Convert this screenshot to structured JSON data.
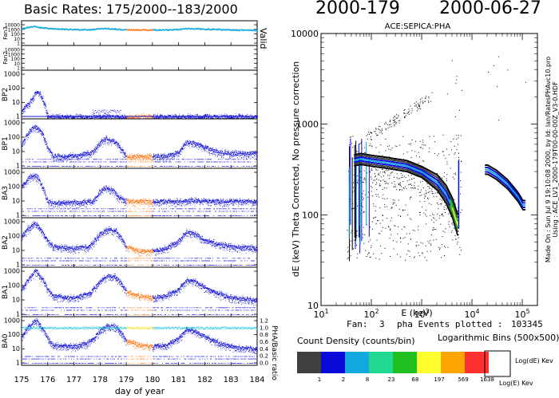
{
  "header": {
    "left_title": "Basic Rates: 175/2000--183/2000",
    "doy_label": "2000-179",
    "date_label": "2000-06-27"
  },
  "colors": {
    "rate_blue": "#1515d8",
    "rate_cyan": "#14a8e0",
    "highlight_orange": "#ff7a1a",
    "ratio_cyan": "#20c8d8",
    "ratio_yellow": "#f0e020"
  },
  "left_panel": {
    "xlabel": "day of year",
    "x_ticks": [
      "175",
      "176",
      "177",
      "178",
      "179",
      "180",
      "181",
      "182",
      "183",
      "184"
    ],
    "x_range": [
      175,
      184
    ],
    "highlight_range": [
      179,
      180
    ],
    "valid_label": "Valid",
    "ratio_axis_label": "PHA/Basic ratio",
    "ratio_ticks": [
      "0.0",
      "0.2",
      "0.4",
      "0.6",
      "0.8",
      "1.0",
      "1.2"
    ],
    "panels": [
      {
        "name": "Fan3",
        "ticks": [
          "1",
          "10",
          "100",
          "1000",
          "10000"
        ],
        "small_ticks": true
      },
      {
        "name": "Fan2",
        "ticks": [
          "1",
          "10",
          "100",
          "1000",
          "10000"
        ],
        "small_ticks": true
      },
      {
        "name": "BP2",
        "ticks": [
          "1",
          "10",
          "100",
          "1000"
        ]
      },
      {
        "name": "BP1",
        "ticks": [
          "1",
          "10",
          "100",
          "1000"
        ]
      },
      {
        "name": "BA3",
        "ticks": [
          "1",
          "10",
          "100",
          "1000"
        ]
      },
      {
        "name": "BA2",
        "ticks": [
          "1",
          "10",
          "100",
          "1000"
        ]
      },
      {
        "name": "BA1",
        "ticks": [
          "1",
          "10",
          "100",
          "1000"
        ]
      },
      {
        "name": "BA0",
        "ticks": [
          "1",
          "10",
          "100",
          "1000"
        ]
      }
    ]
  },
  "chart_data": [
    {
      "type": "line",
      "xlabel": "day of year",
      "xlim": [
        175,
        184
      ],
      "yscale": "log",
      "series": [
        {
          "name": "Fan3",
          "x": [
            175.0,
            175.3,
            175.5,
            175.7,
            176.0,
            176.5,
            177.0,
            177.5,
            177.8,
            178.1,
            178.4,
            178.7,
            179.0,
            179.5,
            180.0,
            180.5,
            181.0,
            181.3,
            181.6,
            182.0,
            182.5,
            183.0,
            183.5,
            184.0
          ],
          "values": [
            2000,
            4000,
            6000,
            3000,
            2000,
            1500,
            1200,
            1000,
            1400,
            2000,
            1800,
            1300,
            1000,
            1000,
            1000,
            900,
            1200,
            2000,
            1800,
            1400,
            1200,
            1000,
            900,
            900
          ]
        },
        {
          "name": "BP2",
          "x": [
            175.0,
            175.3,
            175.5,
            175.6,
            175.7,
            175.8,
            175.9,
            176.0
          ],
          "values": [
            3,
            10,
            40,
            60,
            40,
            20,
            5,
            1
          ]
        },
        {
          "name": "BP1",
          "x": [
            175.0,
            175.3,
            175.5,
            175.6,
            175.8,
            176.0,
            176.2,
            177.0,
            177.7,
            178.0,
            178.2,
            178.5,
            178.7,
            179.0,
            179.5,
            180.0,
            180.5,
            181.0,
            181.3,
            181.6,
            182.0,
            182.5,
            183.0,
            184.0
          ],
          "values": [
            30,
            300,
            600,
            500,
            200,
            20,
            5,
            5,
            10,
            40,
            90,
            60,
            30,
            5,
            5,
            5,
            5,
            10,
            50,
            40,
            20,
            10,
            8,
            8
          ]
        },
        {
          "name": "BA3",
          "x": [
            175.0,
            175.3,
            175.5,
            175.6,
            175.8,
            176.0,
            176.2,
            177.0,
            177.7,
            178.0,
            178.2,
            178.5,
            178.7,
            179.0,
            180.0,
            181.0,
            181.5,
            182.0,
            183.0,
            184.0
          ],
          "values": [
            100,
            500,
            700,
            500,
            100,
            10,
            8,
            8,
            10,
            50,
            100,
            60,
            20,
            10,
            10,
            10,
            12,
            10,
            10,
            10
          ]
        },
        {
          "name": "BA2",
          "x": [
            175.0,
            175.2,
            175.5,
            175.6,
            175.8,
            176.0,
            176.2,
            177.0,
            177.6,
            178.0,
            178.3,
            178.6,
            178.8,
            179.0,
            179.5,
            180.0,
            180.5,
            181.0,
            181.3,
            181.6,
            182.0,
            182.5,
            183.0,
            184.0
          ],
          "values": [
            100,
            300,
            800,
            700,
            200,
            50,
            20,
            15,
            20,
            150,
            300,
            250,
            80,
            20,
            10,
            10,
            15,
            50,
            200,
            150,
            60,
            30,
            20,
            15
          ]
        },
        {
          "name": "BA1",
          "x": [
            175.0,
            175.2,
            175.5,
            175.6,
            175.8,
            176.0,
            176.2,
            177.0,
            177.6,
            178.0,
            178.3,
            178.6,
            178.8,
            179.0,
            179.5,
            180.0,
            180.5,
            181.0,
            181.3,
            181.6,
            182.0,
            182.5,
            183.0,
            184.0
          ],
          "values": [
            50,
            200,
            1000,
            900,
            300,
            60,
            20,
            15,
            30,
            200,
            500,
            400,
            150,
            40,
            20,
            15,
            20,
            60,
            250,
            200,
            80,
            30,
            15,
            10
          ]
        },
        {
          "name": "BA0",
          "x": [
            175.0,
            175.2,
            175.5,
            175.6,
            175.8,
            176.0,
            176.2,
            177.0,
            177.6,
            178.0,
            178.3,
            178.6,
            178.8,
            179.0,
            179.5,
            180.0,
            180.5,
            181.0,
            181.3,
            181.6,
            182.0,
            182.5,
            183.0,
            184.0
          ],
          "values": [
            80,
            300,
            1000,
            900,
            300,
            60,
            20,
            15,
            30,
            200,
            500,
            400,
            150,
            40,
            20,
            15,
            20,
            60,
            250,
            200,
            80,
            30,
            15,
            10
          ]
        },
        {
          "name": "PHA/Basic ratio",
          "x": [
            175,
            176,
            177,
            178,
            179,
            180,
            181,
            182,
            183,
            184
          ],
          "values": [
            1.0,
            1.0,
            1.0,
            1.0,
            1.0,
            1.0,
            1.0,
            1.0,
            1.0,
            1.0
          ]
        }
      ]
    },
    {
      "type": "heatmap",
      "title": "ACE:SEPICA:PHA",
      "xlabel": "E (keV)",
      "ylabel": "dE (keV) Theta Corrected, No pressure correction",
      "xscale": "log",
      "yscale": "log",
      "xlim": [
        10,
        200000
      ],
      "ylim": [
        10,
        10000
      ],
      "x_ticks": [
        "10¹",
        "10²",
        "10³",
        "10⁴",
        "10⁵"
      ],
      "y_ticks": [
        "10",
        "100",
        "1000",
        "10000"
      ],
      "features": [
        {
          "name": "main track",
          "x": [
            40,
            60,
            100,
            200,
            500,
            1000,
            2000,
            3000,
            4000,
            5000
          ],
          "values": [
            400,
            420,
            400,
            380,
            350,
            300,
            230,
            170,
            120,
            80
          ]
        },
        {
          "name": "high energy track",
          "x": [
            20000,
            30000,
            50000,
            80000,
            100000
          ],
          "values": [
            320,
            280,
            220,
            160,
            130
          ]
        }
      ]
    }
  ],
  "right_panel": {
    "title": "ACE:SEPICA:PHA",
    "xlabel": "E (keV)",
    "ylabel": "dE (keV) Theta Corrected, No pressure correction",
    "x_ticks": [
      {
        "b": "10",
        "e": "1"
      },
      {
        "b": "10",
        "e": "2"
      },
      {
        "b": "10",
        "e": "3"
      },
      {
        "b": "10",
        "e": "4"
      },
      {
        "b": "10",
        "e": "5"
      }
    ],
    "y_ticks": [
      "10",
      "100",
      "1000",
      "10000"
    ],
    "made_on_text": "Made On : Sun Jul  9 19:10:08 2000, by Id: lan/RatesPHAvc10.pro",
    "using_text": "Using : ACE_LV1_2000-179T00-00-00Z_V3-0.HDF",
    "fan_label": "Fan:",
    "fan_value": "3",
    "events_label": "pha Events plotted :",
    "events_value": "103345"
  },
  "legend": {
    "title": "Count Density (counts/bin)",
    "bins_label": "Logarithmic Bins (500x500)",
    "swatches": [
      {
        "color": "#404040",
        "label": "1"
      },
      {
        "color": "#0a0ad8",
        "label": "2"
      },
      {
        "color": "#14a8e0",
        "label": "8"
      },
      {
        "color": "#20d890",
        "label": "23"
      },
      {
        "color": "#20c020",
        "label": "68"
      },
      {
        "color": "#ffff30",
        "label": "197"
      },
      {
        "color": "#ffa500",
        "label": "569"
      },
      {
        "color": "#ff3030",
        "label": "1638"
      }
    ],
    "log_de_label": "Log(dE) Kev",
    "log_e_label": "Log(E) Kev"
  }
}
